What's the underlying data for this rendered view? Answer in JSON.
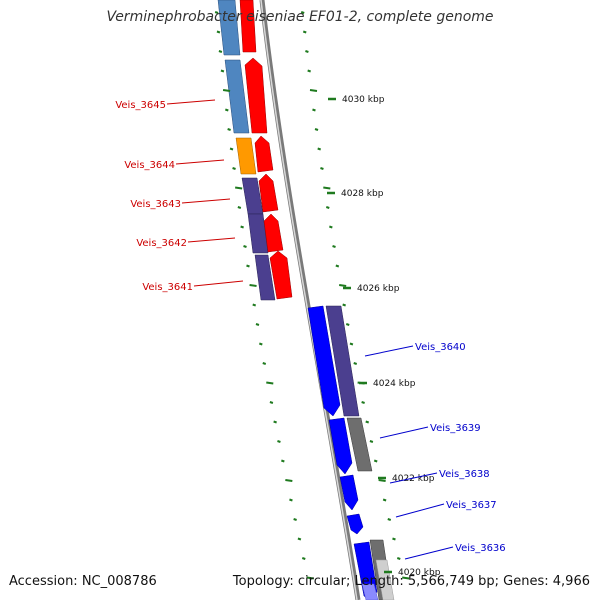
{
  "title": "Verminephrobacter eiseniae EF01-2, complete genome",
  "accession": "Accession: NC_008786",
  "summary": "Topology: circular; Length: 5,566,749 bp; Genes: 4,966",
  "scale_unit": "kbp",
  "scale_labels": [
    "4030 kbp",
    "4028 kbp",
    "4026 kbp",
    "4024 kbp",
    "4022 kbp",
    "4020 kbp"
  ],
  "colors": {
    "backbone": "#8a8a8a",
    "tick": "#1f7a1f",
    "left_label": "#cc0000",
    "right_label": "#0000cc",
    "cog_blue_light": "#4f86c0",
    "cog_orange": "#ff9900",
    "cog_purple": "#4b3f8f",
    "cog_grey": "#6e6e6e",
    "cog_blue": "#0000ff",
    "cog_red": "#ff0000"
  },
  "left_genes": [
    {
      "name": "Veis_3645"
    },
    {
      "name": "Veis_3644"
    },
    {
      "name": "Veis_3643"
    },
    {
      "name": "Veis_3642"
    },
    {
      "name": "Veis_3641"
    }
  ],
  "right_genes": [
    {
      "name": "Veis_3640"
    },
    {
      "name": "Veis_3639"
    },
    {
      "name": "Veis_3638"
    },
    {
      "name": "Veis_3637"
    },
    {
      "name": "Veis_3636"
    }
  ]
}
